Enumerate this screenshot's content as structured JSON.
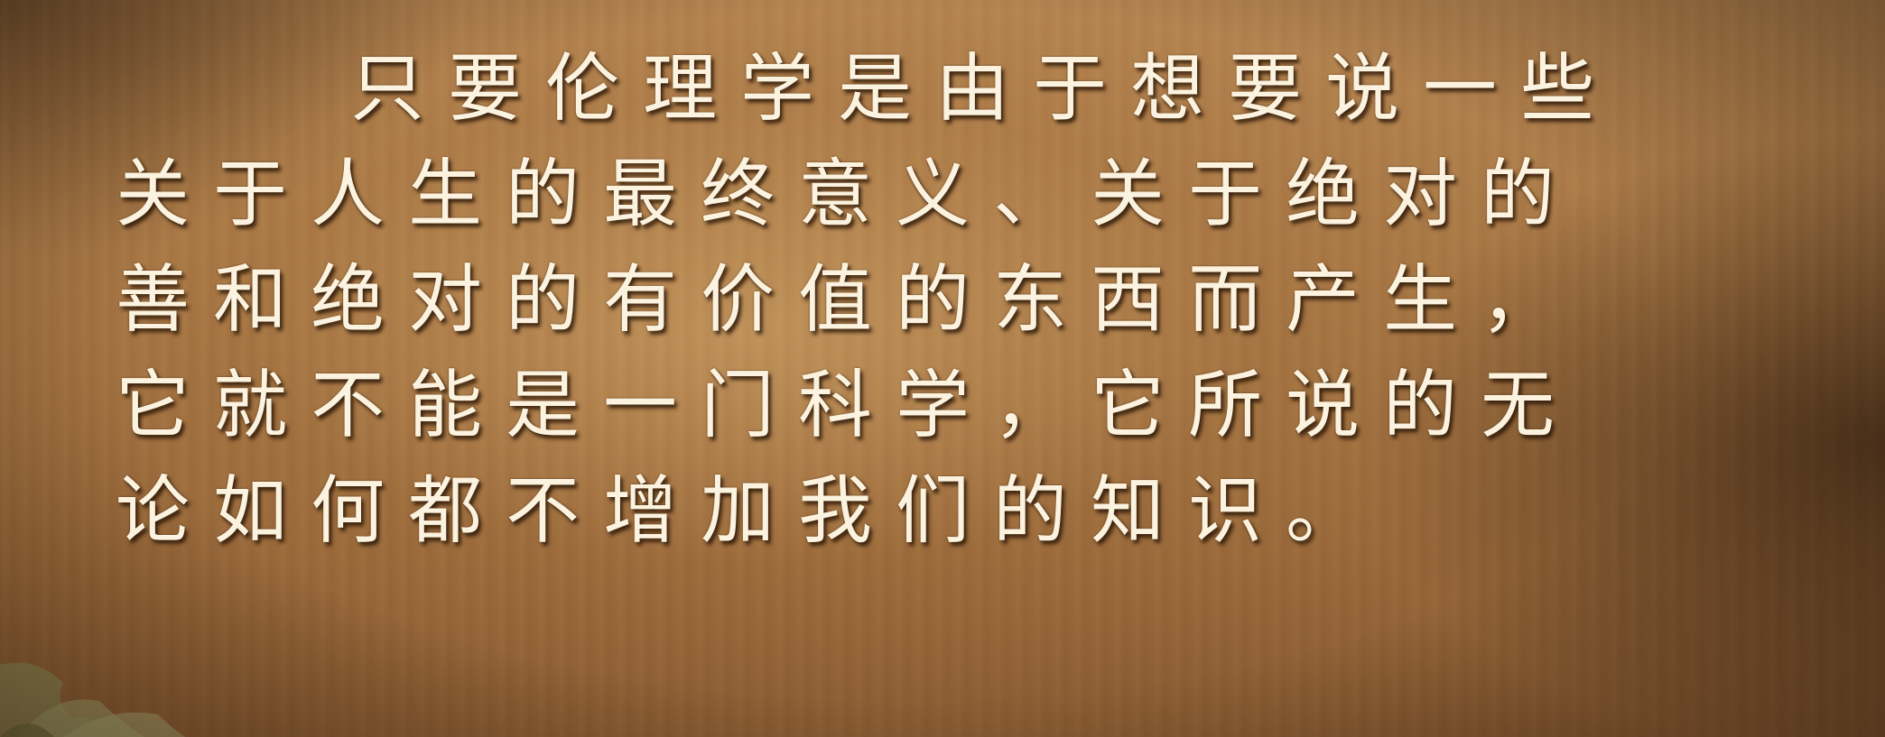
{
  "passage": {
    "lines": [
      "只要伦理学是由于想要说一些",
      "关于人生的最终意义、关于绝对的",
      "善和绝对的有价值的东西而产生，",
      "它就不能是一门科学，它所说的无",
      "论如何都不增加我们的知识。"
    ]
  },
  "colors": {
    "text": "#fbf3df",
    "background": "#a67644"
  }
}
